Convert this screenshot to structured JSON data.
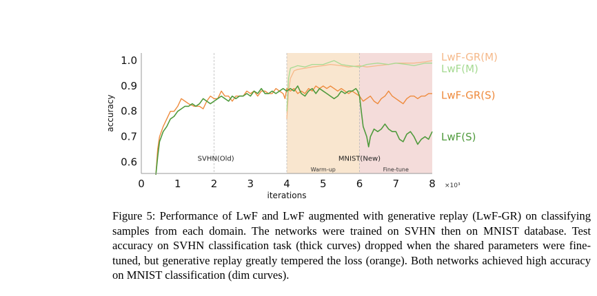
{
  "chart_data": {
    "type": "line",
    "xlabel": "iterations",
    "ylabel": "accuracy",
    "x_multiplier_label": "×10³",
    "xlim": [
      0,
      8
    ],
    "ylim": [
      0.555,
      1.03
    ],
    "xticks": [
      "0",
      "1",
      "2",
      "3",
      "4",
      "5",
      "6",
      "7",
      "8"
    ],
    "xtick_values": [
      0,
      1,
      2,
      3,
      4,
      5,
      6,
      7,
      8
    ],
    "yticks": [
      "0.6",
      "0.7",
      "0.8",
      "0.9",
      "1.0"
    ],
    "ytick_values": [
      0.6,
      0.7,
      0.8,
      0.9,
      1.0
    ],
    "grid": false,
    "regions": [
      {
        "label": "Warm-up",
        "from": 4,
        "to": 6,
        "color": "#f9e6cf"
      },
      {
        "label": "Fine-tune",
        "from": 6,
        "to": 8,
        "color": "#f4dcda"
      }
    ],
    "vlines": [
      2,
      4,
      6
    ],
    "annotations": [
      {
        "text": "SVHN(Old)",
        "x": 2.05,
        "y": 0.605
      },
      {
        "text": "MNIST(New)",
        "x": 6.0,
        "y": 0.605
      }
    ],
    "series": [
      {
        "name": "LwF-GR(M)",
        "color": "#f5b98a",
        "width": 1.3,
        "label_y": 1.005,
        "x": [
          4.0,
          4.05,
          4.1,
          4.2,
          4.3,
          4.5,
          4.7,
          5.0,
          5.2,
          5.5,
          5.7,
          6.0,
          6.2,
          6.5,
          6.8,
          7.0,
          7.3,
          7.5,
          7.8,
          8.0
        ],
        "y": [
          0.77,
          0.88,
          0.93,
          0.96,
          0.965,
          0.97,
          0.975,
          0.98,
          0.985,
          0.98,
          0.975,
          0.98,
          0.975,
          0.98,
          0.985,
          0.99,
          0.99,
          0.99,
          0.995,
          1.0
        ]
      },
      {
        "name": "LwF(M)",
        "color": "#a6da92",
        "width": 1.3,
        "label_y": 0.98,
        "x": [
          4.0,
          4.05,
          4.1,
          4.2,
          4.3,
          4.5,
          4.7,
          5.0,
          5.2,
          5.3,
          5.5,
          5.7,
          6.0,
          6.2,
          6.5,
          6.8,
          7.0,
          7.3,
          7.5,
          7.8,
          8.0
        ],
        "y": [
          0.8,
          0.93,
          0.97,
          0.975,
          0.98,
          0.975,
          0.985,
          0.985,
          0.995,
          1.0,
          0.985,
          0.98,
          0.975,
          0.985,
          0.99,
          0.985,
          0.99,
          0.985,
          0.98,
          0.99,
          0.99
        ]
      },
      {
        "name": "LwF-GR(S)",
        "color": "#ee8a3c",
        "width": 1.4,
        "label_y": 0.865,
        "x": [
          0.4,
          0.45,
          0.5,
          0.6,
          0.7,
          0.8,
          0.9,
          1.0,
          1.1,
          1.2,
          1.3,
          1.45,
          1.6,
          1.7,
          1.8,
          1.9,
          2.0,
          2.1,
          2.2,
          2.3,
          2.4,
          2.5,
          2.6,
          2.8,
          2.9,
          3.0,
          3.1,
          3.2,
          3.3,
          3.4,
          3.5,
          3.6,
          3.7,
          3.8,
          3.9,
          3.95,
          4.0,
          4.1,
          4.2,
          4.3,
          4.4,
          4.5,
          4.6,
          4.7,
          4.8,
          4.9,
          5.0,
          5.1,
          5.2,
          5.3,
          5.4,
          5.5,
          5.6,
          5.7,
          5.8,
          5.9,
          6.0,
          6.1,
          6.2,
          6.3,
          6.4,
          6.5,
          6.6,
          6.7,
          6.8,
          6.9,
          7.0,
          7.1,
          7.2,
          7.3,
          7.4,
          7.5,
          7.6,
          7.7,
          7.8,
          7.9,
          8.0
        ],
        "y": [
          0.55,
          0.65,
          0.7,
          0.74,
          0.77,
          0.8,
          0.8,
          0.82,
          0.85,
          0.84,
          0.83,
          0.82,
          0.82,
          0.81,
          0.84,
          0.86,
          0.85,
          0.85,
          0.88,
          0.86,
          0.86,
          0.84,
          0.86,
          0.86,
          0.88,
          0.87,
          0.88,
          0.86,
          0.88,
          0.88,
          0.87,
          0.87,
          0.89,
          0.88,
          0.87,
          0.85,
          0.89,
          0.88,
          0.89,
          0.87,
          0.88,
          0.87,
          0.89,
          0.88,
          0.9,
          0.89,
          0.9,
          0.89,
          0.9,
          0.89,
          0.88,
          0.89,
          0.88,
          0.87,
          0.88,
          0.87,
          0.86,
          0.84,
          0.85,
          0.86,
          0.84,
          0.83,
          0.85,
          0.86,
          0.88,
          0.86,
          0.85,
          0.84,
          0.83,
          0.85,
          0.86,
          0.86,
          0.85,
          0.86,
          0.86,
          0.87,
          0.87
        ]
      },
      {
        "name": "LwF(S)",
        "color": "#4f9a3c",
        "width": 1.6,
        "label_y": 0.7,
        "x": [
          0.4,
          0.45,
          0.5,
          0.6,
          0.7,
          0.8,
          0.9,
          1.0,
          1.1,
          1.2,
          1.3,
          1.4,
          1.5,
          1.6,
          1.7,
          1.8,
          1.9,
          2.0,
          2.1,
          2.2,
          2.3,
          2.4,
          2.5,
          2.6,
          2.7,
          2.8,
          2.9,
          3.0,
          3.1,
          3.2,
          3.3,
          3.4,
          3.5,
          3.6,
          3.7,
          3.8,
          3.9,
          4.0,
          4.1,
          4.2,
          4.3,
          4.4,
          4.5,
          4.6,
          4.7,
          4.8,
          4.9,
          5.0,
          5.1,
          5.2,
          5.3,
          5.4,
          5.5,
          5.6,
          5.7,
          5.8,
          5.9,
          5.95,
          6.0,
          6.05,
          6.1,
          6.2,
          6.25,
          6.3,
          6.4,
          6.5,
          6.6,
          6.7,
          6.8,
          6.9,
          7.0,
          7.1,
          7.2,
          7.3,
          7.4,
          7.5,
          7.6,
          7.7,
          7.8,
          7.9,
          8.0
        ],
        "y": [
          0.55,
          0.62,
          0.68,
          0.72,
          0.74,
          0.77,
          0.78,
          0.8,
          0.81,
          0.82,
          0.82,
          0.83,
          0.82,
          0.83,
          0.85,
          0.84,
          0.83,
          0.84,
          0.85,
          0.86,
          0.85,
          0.84,
          0.86,
          0.85,
          0.86,
          0.86,
          0.87,
          0.86,
          0.88,
          0.87,
          0.89,
          0.87,
          0.87,
          0.88,
          0.87,
          0.88,
          0.89,
          0.88,
          0.89,
          0.88,
          0.9,
          0.87,
          0.86,
          0.88,
          0.89,
          0.87,
          0.89,
          0.88,
          0.87,
          0.86,
          0.85,
          0.86,
          0.88,
          0.87,
          0.88,
          0.88,
          0.89,
          0.88,
          0.86,
          0.8,
          0.74,
          0.7,
          0.66,
          0.7,
          0.73,
          0.72,
          0.73,
          0.75,
          0.73,
          0.72,
          0.72,
          0.69,
          0.68,
          0.71,
          0.72,
          0.7,
          0.67,
          0.69,
          0.7,
          0.69,
          0.72
        ]
      }
    ]
  },
  "caption": "Figure 5: Performance of LwF and LwF augmented with generative replay (LwF-GR) on classifying samples from each domain. The networks were trained on SVHN then on MNIST database. Test accuracy on SVHN classification task (thick curves) dropped when the shared parameters were fine-tuned, but generative replay greatly tempered the loss (orange). Both networks achieved high accuracy on MNIST classification (dim curves)."
}
